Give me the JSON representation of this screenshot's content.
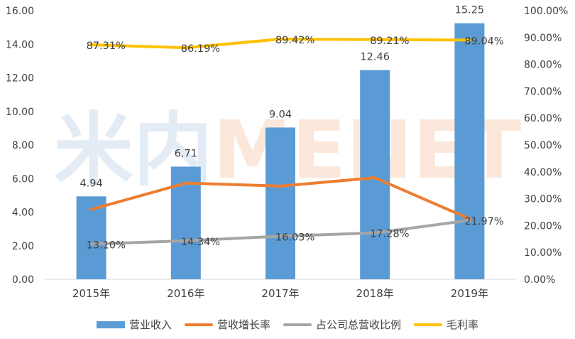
{
  "watermark": "米内MENET",
  "chart_data": {
    "type": "bar",
    "title": "",
    "categories": [
      "2015年",
      "2016年",
      "2017年",
      "2018年",
      "2019年"
    ],
    "y_left": {
      "ylim": [
        0,
        16
      ],
      "ticks": [
        "0.00",
        "2.00",
        "4.00",
        "6.00",
        "8.00",
        "10.00",
        "12.00",
        "14.00",
        "16.00"
      ]
    },
    "y_right": {
      "ylim": [
        0,
        100
      ],
      "ticks": [
        "0.00%",
        "10.00%",
        "20.00%",
        "30.00%",
        "40.00%",
        "50.00%",
        "60.00%",
        "70.00%",
        "80.00%",
        "90.00%",
        "100.00%"
      ]
    },
    "series": [
      {
        "name": "营业收入",
        "type": "bar",
        "axis": "left",
        "color": "#5B9BD5",
        "values": [
          4.94,
          6.71,
          9.04,
          12.46,
          15.25
        ],
        "labels": [
          "4.94",
          "6.71",
          "9.04",
          "12.46",
          "15.25"
        ]
      },
      {
        "name": "营收增长率",
        "type": "line",
        "axis": "right",
        "color": "#ED7D31",
        "values": [
          26.0,
          35.8,
          34.7,
          37.8,
          22.5
        ],
        "labels": []
      },
      {
        "name": "占公司总营收比例",
        "type": "line",
        "axis": "right",
        "color": "#A5A5A5",
        "values": [
          13.1,
          14.34,
          16.03,
          17.28,
          21.97
        ],
        "labels": [
          "13.10%",
          "14.34%",
          "16.03%",
          "17.28%",
          "21.97%"
        ]
      },
      {
        "name": "毛利率",
        "type": "line",
        "axis": "right",
        "color": "#FFC000",
        "values": [
          87.31,
          86.19,
          89.42,
          89.21,
          89.04
        ],
        "labels": [
          "87.31%",
          "86.19%",
          "89.42%",
          "89.21%",
          "89.04%"
        ]
      }
    ],
    "legend_position": "bottom",
    "grid": false
  }
}
